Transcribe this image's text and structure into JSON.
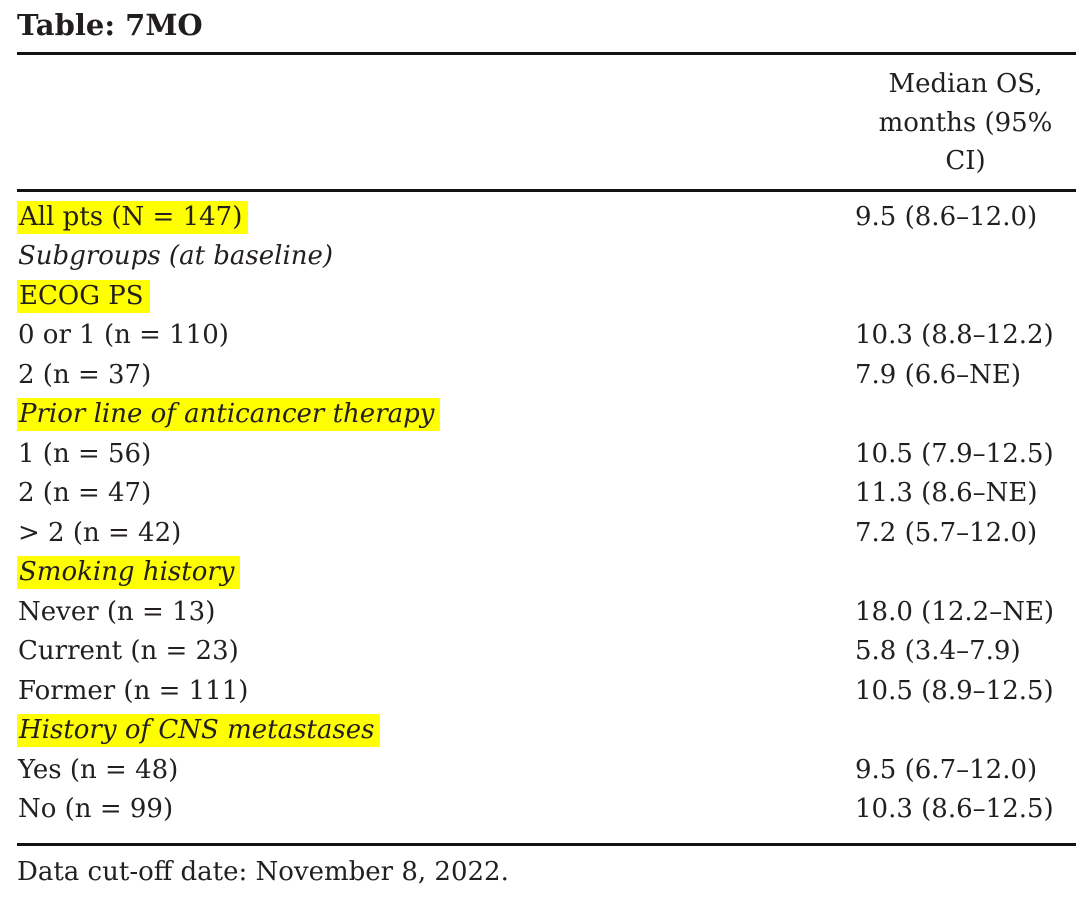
{
  "title": "Table: 7MO",
  "header": {
    "median_os_lines": [
      "Median OS,",
      "months (95%",
      "CI)"
    ]
  },
  "rows": [
    {
      "label": "All pts (N = 147)",
      "value": "9.5 (8.6–12.0)",
      "highlight": true,
      "italic": false
    },
    {
      "label": "Subgroups (at baseline)",
      "value": "",
      "highlight": false,
      "italic": true
    },
    {
      "label": "ECOG PS",
      "value": "",
      "highlight": true,
      "italic": false
    },
    {
      "label": "0 or 1 (n = 110)",
      "value": "10.3 (8.8–12.2)",
      "highlight": false,
      "italic": false
    },
    {
      "label": "2 (n = 37)",
      "value": "7.9 (6.6–NE)",
      "highlight": false,
      "italic": false
    },
    {
      "label": "Prior line of anticancer therapy",
      "value": "",
      "highlight": true,
      "italic": true
    },
    {
      "label": "1 (n = 56)",
      "value": "10.5 (7.9–12.5)",
      "highlight": false,
      "italic": false
    },
    {
      "label": "2 (n = 47)",
      "value": "11.3 (8.6–NE)",
      "highlight": false,
      "italic": false
    },
    {
      "label": "> 2 (n = 42)",
      "value": "7.2 (5.7–12.0)",
      "highlight": false,
      "italic": false
    },
    {
      "label": "Smoking history",
      "value": "",
      "highlight": true,
      "italic": true
    },
    {
      "label": "Never (n = 13)",
      "value": "18.0 (12.2–NE)",
      "highlight": false,
      "italic": false
    },
    {
      "label": "Current (n = 23)",
      "value": "5.8 (3.4–7.9)",
      "highlight": false,
      "italic": false
    },
    {
      "label": "Former (n = 111)",
      "value": "10.5 (8.9–12.5)",
      "highlight": false,
      "italic": false
    },
    {
      "label": "History of CNS metastases",
      "value": "",
      "highlight": true,
      "italic": true
    },
    {
      "label": "Yes (n = 48)",
      "value": "9.5 (6.7–12.0)",
      "highlight": false,
      "italic": false
    },
    {
      "label": "No (n = 99)",
      "value": "10.3 (8.6–12.5)",
      "highlight": false,
      "italic": false
    }
  ],
  "footnote": "Data cut-off date: November 8, 2022.",
  "colors": {
    "highlight": "#ffff00",
    "text": "#231f20",
    "rule": "#131313"
  }
}
